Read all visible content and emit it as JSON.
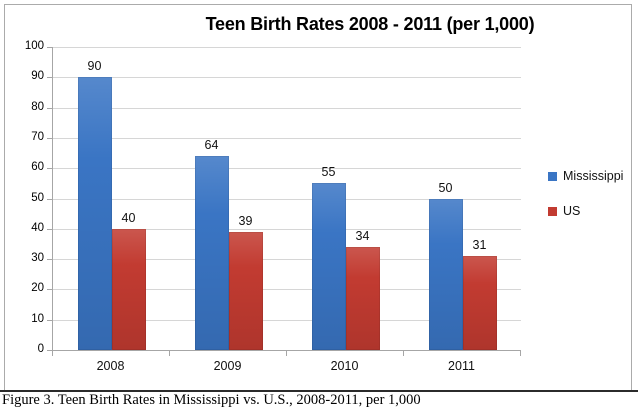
{
  "document": {
    "caption": "Figure 3. Teen Birth Rates in Mississippi vs. U.S., 2008-2011, per 1,000"
  },
  "chart_data": {
    "type": "bar",
    "title": "Teen Birth Rates 2008 - 2011 (per 1,000)",
    "categories": [
      "2008",
      "2009",
      "2010",
      "2011"
    ],
    "series": [
      {
        "name": "Mississippi",
        "color": "#3a75c4",
        "values": [
          90,
          64,
          55,
          50
        ]
      },
      {
        "name": "US",
        "color": "#c23b31",
        "values": [
          40,
          39,
          34,
          31
        ]
      }
    ],
    "xlabel": "",
    "ylabel": "",
    "ylim": [
      0,
      100
    ],
    "ytick_step": 10,
    "grid": true,
    "data_labels": true,
    "legend_position": "right"
  },
  "style": {
    "series_colors": [
      "#3a75c4",
      "#c23b31"
    ],
    "gridline_color": "#d6d6d6",
    "axis_color": "#a6a6a6",
    "frame_border_color": "#ababab",
    "bottom_rule_color": "#2b2b2b",
    "text_color": "#000000",
    "background_color": "#ffffff"
  }
}
